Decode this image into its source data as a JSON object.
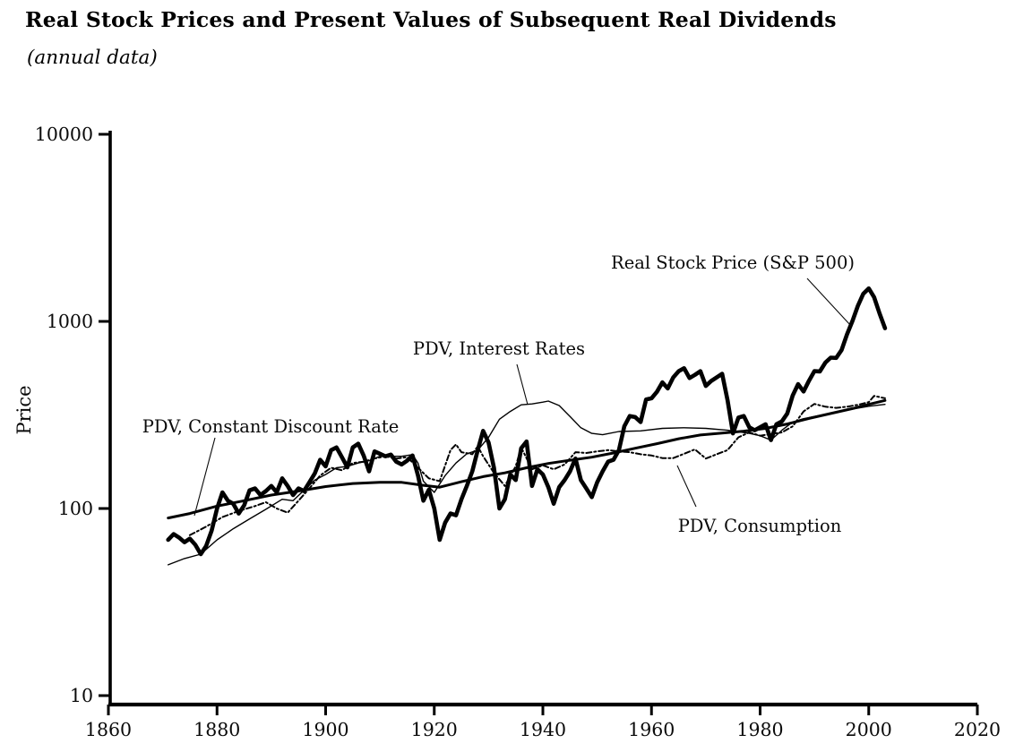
{
  "figure": {
    "title": "Real Stock Prices and Present Values of Subsequent Real Dividends",
    "subtitle": "(annual data)"
  },
  "axes": {
    "y_label": "Price",
    "y_ticks": [
      "10",
      "100",
      "1000",
      "10000"
    ],
    "x_ticks": [
      "1860",
      "1880",
      "1900",
      "1920",
      "1940",
      "1960",
      "1980",
      "2000",
      "2020"
    ]
  },
  "annotations": [
    {
      "label": "Real Stock Price (S&P 500)",
      "series": "real-stock-price"
    },
    {
      "label": "PDV, Interest Rates",
      "series": "pdv-interest-rates"
    },
    {
      "label": "PDV, Constant Discount Rate",
      "series": "pdv-constant-discount-rate"
    },
    {
      "label": "PDV, Consumption",
      "series": "pdv-consumption"
    }
  ],
  "chart_data": {
    "type": "line",
    "title": "Real Stock Prices and Present Values of Subsequent Real Dividends (annual data)",
    "xlabel": "",
    "ylabel": "Price",
    "x_range": [
      1860,
      2020
    ],
    "y_range": [
      10,
      10000
    ],
    "y_scale": "log",
    "grid": false,
    "legend": "inline-annotations",
    "series": [
      {
        "id": "real-stock-price",
        "name": "Real Stock Price (S&P 500)",
        "style": "solid-thick",
        "start_year": 1871,
        "values": [
          68,
          73,
          70,
          66,
          69,
          64,
          57,
          63,
          76,
          100,
          122,
          110,
          106,
          94,
          104,
          125,
          128,
          118,
          124,
          132,
          122,
          145,
          132,
          118,
          128,
          124,
          138,
          154,
          182,
          168,
          205,
          212,
          188,
          166,
          212,
          222,
          192,
          158,
          202,
          196,
          190,
          194,
          178,
          172,
          180,
          192,
          150,
          110,
          126,
          100,
          68,
          84,
          94,
          92,
          112,
          132,
          158,
          205,
          260,
          225,
          165,
          100,
          112,
          152,
          142,
          210,
          228,
          132,
          162,
          152,
          130,
          106,
          130,
          142,
          158,
          185,
          142,
          128,
          115,
          138,
          158,
          178,
          182,
          205,
          275,
          312,
          308,
          290,
          382,
          388,
          420,
          472,
          438,
          502,
          542,
          562,
          498,
          518,
          542,
          452,
          480,
          502,
          525,
          380,
          252,
          306,
          312,
          272,
          262,
          272,
          282,
          232,
          282,
          292,
          322,
          402,
          462,
          422,
          482,
          542,
          540,
          602,
          640,
          638,
          702,
          852,
          1005,
          1210,
          1405,
          1500,
          1345,
          1100,
          920
        ]
      },
      {
        "id": "pdv-constant-discount-rate",
        "name": "PDV, Constant Discount Rate",
        "style": "solid-medium",
        "points": [
          [
            1871,
            89
          ],
          [
            1875,
            94
          ],
          [
            1880,
            103
          ],
          [
            1885,
            110
          ],
          [
            1890,
            118
          ],
          [
            1895,
            124
          ],
          [
            1900,
            131
          ],
          [
            1905,
            136
          ],
          [
            1910,
            138
          ],
          [
            1914,
            138
          ],
          [
            1918,
            133
          ],
          [
            1921,
            130
          ],
          [
            1925,
            139
          ],
          [
            1929,
            148
          ],
          [
            1933,
            155
          ],
          [
            1937,
            165
          ],
          [
            1941,
            174
          ],
          [
            1945,
            181
          ],
          [
            1949,
            188
          ],
          [
            1953,
            198
          ],
          [
            1957,
            210
          ],
          [
            1961,
            222
          ],
          [
            1965,
            236
          ],
          [
            1969,
            247
          ],
          [
            1973,
            253
          ],
          [
            1977,
            259
          ],
          [
            1981,
            268
          ],
          [
            1985,
            283
          ],
          [
            1989,
            303
          ],
          [
            1993,
            322
          ],
          [
            1997,
            342
          ],
          [
            2000,
            360
          ],
          [
            2003,
            378
          ]
        ]
      },
      {
        "id": "pdv-interest-rates",
        "name": "PDV, Interest Rates",
        "style": "solid-thin",
        "points": [
          [
            1871,
            50
          ],
          [
            1874,
            54
          ],
          [
            1877,
            57
          ],
          [
            1880,
            68
          ],
          [
            1883,
            78
          ],
          [
            1886,
            88
          ],
          [
            1889,
            99
          ],
          [
            1892,
            112
          ],
          [
            1894,
            110
          ],
          [
            1896,
            125
          ],
          [
            1898,
            142
          ],
          [
            1900,
            152
          ],
          [
            1902,
            165
          ],
          [
            1904,
            168
          ],
          [
            1906,
            175
          ],
          [
            1908,
            180
          ],
          [
            1910,
            190
          ],
          [
            1912,
            190
          ],
          [
            1914,
            190
          ],
          [
            1916,
            194
          ],
          [
            1917,
            175
          ],
          [
            1918,
            140
          ],
          [
            1920,
            122
          ],
          [
            1922,
            150
          ],
          [
            1924,
            175
          ],
          [
            1926,
            196
          ],
          [
            1928,
            205
          ],
          [
            1930,
            240
          ],
          [
            1932,
            300
          ],
          [
            1934,
            330
          ],
          [
            1936,
            358
          ],
          [
            1938,
            362
          ],
          [
            1940,
            370
          ],
          [
            1941,
            375
          ],
          [
            1943,
            355
          ],
          [
            1945,
            310
          ],
          [
            1947,
            270
          ],
          [
            1949,
            252
          ],
          [
            1951,
            248
          ],
          [
            1954,
            258
          ],
          [
            1958,
            260
          ],
          [
            1962,
            268
          ],
          [
            1966,
            270
          ],
          [
            1970,
            268
          ],
          [
            1974,
            262
          ],
          [
            1978,
            252
          ],
          [
            1980,
            245
          ],
          [
            1982,
            232
          ],
          [
            1984,
            262
          ],
          [
            1986,
            290
          ],
          [
            1988,
            302
          ],
          [
            1991,
            314
          ],
          [
            1994,
            326
          ],
          [
            1997,
            340
          ],
          [
            2000,
            352
          ],
          [
            2003,
            360
          ]
        ]
      },
      {
        "id": "pdv-consumption",
        "name": "PDV, Consumption",
        "style": "dashed",
        "points": [
          [
            1875,
            72
          ],
          [
            1878,
            80
          ],
          [
            1881,
            90
          ],
          [
            1884,
            97
          ],
          [
            1887,
            103
          ],
          [
            1889,
            108
          ],
          [
            1891,
            100
          ],
          [
            1893,
            95
          ],
          [
            1895,
            110
          ],
          [
            1897,
            128
          ],
          [
            1899,
            150
          ],
          [
            1901,
            165
          ],
          [
            1903,
            160
          ],
          [
            1905,
            175
          ],
          [
            1907,
            178
          ],
          [
            1909,
            185
          ],
          [
            1911,
            190
          ],
          [
            1913,
            185
          ],
          [
            1915,
            188
          ],
          [
            1917,
            165
          ],
          [
            1919,
            145
          ],
          [
            1921,
            140
          ],
          [
            1923,
            205
          ],
          [
            1924,
            220
          ],
          [
            1925,
            200
          ],
          [
            1927,
            195
          ],
          [
            1928,
            215
          ],
          [
            1929,
            190
          ],
          [
            1931,
            155
          ],
          [
            1933,
            132
          ],
          [
            1935,
            168
          ],
          [
            1936,
            212
          ],
          [
            1938,
            162
          ],
          [
            1940,
            170
          ],
          [
            1942,
            162
          ],
          [
            1944,
            172
          ],
          [
            1946,
            200
          ],
          [
            1948,
            198
          ],
          [
            1950,
            202
          ],
          [
            1952,
            205
          ],
          [
            1954,
            202
          ],
          [
            1956,
            200
          ],
          [
            1958,
            195
          ],
          [
            1960,
            192
          ],
          [
            1962,
            186
          ],
          [
            1964,
            186
          ],
          [
            1966,
            196
          ],
          [
            1968,
            207
          ],
          [
            1970,
            185
          ],
          [
            1972,
            195
          ],
          [
            1974,
            205
          ],
          [
            1976,
            240
          ],
          [
            1978,
            255
          ],
          [
            1980,
            245
          ],
          [
            1982,
            250
          ],
          [
            1984,
            255
          ],
          [
            1986,
            275
          ],
          [
            1988,
            330
          ],
          [
            1990,
            362
          ],
          [
            1992,
            350
          ],
          [
            1994,
            345
          ],
          [
            1996,
            350
          ],
          [
            1998,
            358
          ],
          [
            2000,
            370
          ],
          [
            2001,
            400
          ],
          [
            2003,
            388
          ]
        ]
      }
    ]
  }
}
